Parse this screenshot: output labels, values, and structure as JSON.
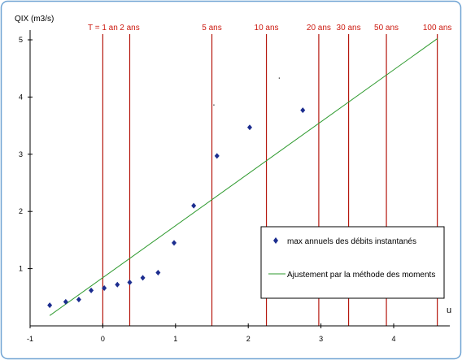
{
  "colors": {
    "frame": "#6fa3d3",
    "axis": "#000000",
    "return_period_line": "#b5170e",
    "return_period_text": "#cc1a10",
    "points": "#1c2d8f",
    "fit_line": "#2e9a2e"
  },
  "chart_data": {
    "type": "scatter",
    "ylabel": "QIX (m3/s)",
    "xlabel": "u",
    "xlim": [
      -1,
      4.7
    ],
    "ylim": [
      0,
      5
    ],
    "x_ticks": [
      -1,
      0,
      1,
      2,
      3,
      4
    ],
    "y_ticks": [
      1,
      2,
      3,
      4,
      5
    ],
    "grid": false,
    "series": [
      {
        "name": "max annuels des débits instantanés",
        "kind": "points",
        "points": [
          {
            "x": -0.73,
            "y": 0.36
          },
          {
            "x": -0.51,
            "y": 0.42
          },
          {
            "x": -0.33,
            "y": 0.46
          },
          {
            "x": -0.16,
            "y": 0.62
          },
          {
            "x": 0.02,
            "y": 0.66
          },
          {
            "x": 0.2,
            "y": 0.72
          },
          {
            "x": 0.37,
            "y": 0.76
          },
          {
            "x": 0.55,
            "y": 0.84
          },
          {
            "x": 0.76,
            "y": 0.93
          },
          {
            "x": 0.98,
            "y": 1.45
          },
          {
            "x": 1.25,
            "y": 2.1
          },
          {
            "x": 1.57,
            "y": 2.97
          },
          {
            "x": 2.02,
            "y": 3.47
          },
          {
            "x": 2.75,
            "y": 3.77
          }
        ]
      },
      {
        "name": "Ajustement par la méthode des moments",
        "kind": "line",
        "points": [
          {
            "x": -0.73,
            "y": 0.18
          },
          {
            "x": 4.6,
            "y": 5.02
          }
        ]
      }
    ],
    "return_periods": [
      {
        "label": "T = 1 an",
        "u": 0.0
      },
      {
        "label": "2 ans",
        "u": 0.37
      },
      {
        "label": "5 ans",
        "u": 1.5
      },
      {
        "label": "10 ans",
        "u": 2.25
      },
      {
        "label": "20 ans",
        "u": 2.97
      },
      {
        "label": "30 ans",
        "u": 3.38
      },
      {
        "label": "50 ans",
        "u": 3.9
      },
      {
        "label": "100 ans",
        "u": 4.6
      }
    ],
    "stray_marks": [
      {
        "x": 1.52,
        "y": 3.87
      },
      {
        "x": 2.42,
        "y": 4.34
      }
    ],
    "legend_position": "bottom-right"
  }
}
